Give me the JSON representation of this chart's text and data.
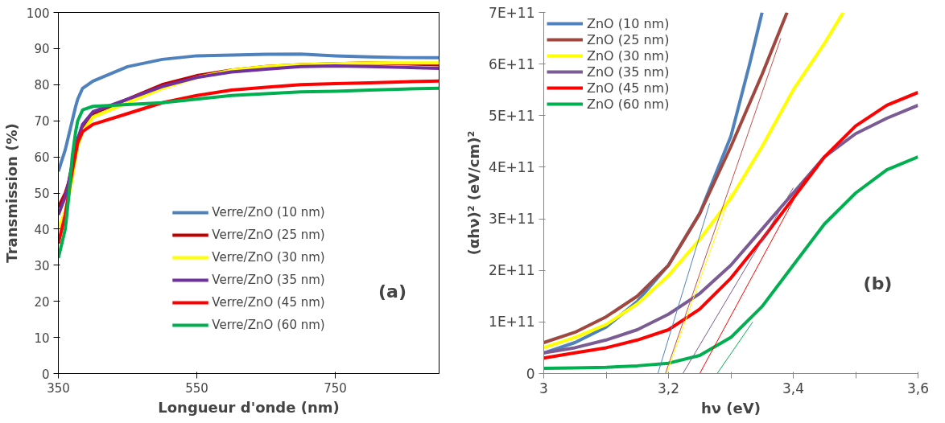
{
  "chart_data": [
    {
      "type": "line",
      "xlabel": "Longueur d'onde (nm)",
      "ylabel": "Transmission (%)",
      "x": [
        350,
        360,
        365,
        370,
        375,
        378,
        385,
        400,
        450,
        500,
        550,
        600,
        650,
        700,
        750,
        800,
        850,
        900
      ],
      "xlim": [
        350,
        900
      ],
      "xticks": [
        350,
        550,
        750
      ],
      "ylim": [
        0,
        100
      ],
      "yticks": [
        0,
        10,
        20,
        30,
        40,
        50,
        60,
        70,
        80,
        90,
        100
      ],
      "grid": false,
      "legend": "bottom",
      "annotations": [
        "(a)"
      ],
      "series": [
        {
          "name": "Verre/ZnO (10 nm)",
          "color": "#4f81bd",
          "values": [
            56,
            62,
            66,
            70,
            74,
            76,
            79,
            81,
            85,
            87,
            88,
            88.2,
            88.4,
            88.5,
            88,
            87.7,
            87.5,
            87.5
          ]
        },
        {
          "name": "Verre/ZnO (25 nm)",
          "color": "#c00000",
          "values": [
            46,
            50,
            53,
            58,
            62,
            65,
            68,
            72,
            76,
            80,
            82.5,
            84,
            85,
            85.5,
            85.8,
            86,
            85.8,
            85.5
          ]
        },
        {
          "name": "Verre/ZnO (30 nm)",
          "color": "#ffff00",
          "values": [
            40,
            45,
            49,
            54,
            60,
            63,
            67,
            71,
            75,
            79,
            82,
            84,
            85,
            85.5,
            85.8,
            86,
            86,
            86
          ]
        },
        {
          "name": "Verre/ZnO (35 nm)",
          "color": "#7030a0",
          "values": [
            44,
            49,
            53,
            58,
            62,
            65,
            69,
            72.5,
            76,
            79.5,
            82,
            83.5,
            84.3,
            85,
            85.2,
            85,
            84.8,
            84.5
          ]
        },
        {
          "name": "Verre/ZnO (45 nm)",
          "color": "#ff0000",
          "values": [
            36,
            44,
            50,
            56,
            61,
            64,
            67,
            69,
            72,
            75,
            77,
            78.5,
            79.3,
            80,
            80.3,
            80.5,
            80.8,
            81
          ]
        },
        {
          "name": "Verre/ZnO (60 nm)",
          "color": "#00b050",
          "values": [
            32,
            40,
            49,
            60,
            67,
            70,
            73,
            74,
            74.5,
            75,
            76,
            77,
            77.5,
            78,
            78.2,
            78.5,
            78.8,
            79
          ]
        }
      ]
    },
    {
      "type": "line",
      "xlabel": "hν (eV)",
      "ylabel": "(αhν)² (eV/cm)²",
      "x": [
        3.0,
        3.05,
        3.1,
        3.15,
        3.2,
        3.25,
        3.3,
        3.35,
        3.4,
        3.45,
        3.5,
        3.55,
        3.6
      ],
      "xlim": [
        3.0,
        3.6
      ],
      "xticks": [
        3,
        {
          "value": 3.1,
          "label": null
        },
        {
          "value": 3.2,
          "label": "3,2"
        },
        {
          "value": 3.3,
          "label": null
        },
        {
          "value": 3.4,
          "label": "3,4"
        },
        {
          "value": 3.5,
          "label": null
        },
        {
          "value": 3.6,
          "label": "3,6"
        }
      ],
      "ylim": [
        0,
        700000000000.0
      ],
      "yticks": [
        0,
        {
          "value": 100000000000.0,
          "label": "1E+11"
        },
        {
          "value": 200000000000.0,
          "label": "2E+11"
        },
        {
          "value": 300000000000.0,
          "label": "3E+11"
        },
        {
          "value": 400000000000.0,
          "label": "4E+11"
        },
        {
          "value": 500000000000.0,
          "label": "5E+11"
        },
        {
          "value": 600000000000.0,
          "label": "6E+11"
        },
        {
          "value": 700000000000.0,
          "label": "7E+11"
        }
      ],
      "grid": false,
      "legend": "top left",
      "annotations": [
        "(b)"
      ],
      "series": [
        {
          "name": "ZnO (10 nm)",
          "color": "#4f81bd",
          "x": [
            3.0,
            3.05,
            3.1,
            3.15,
            3.2,
            3.25,
            3.3,
            3.33,
            3.35
          ],
          "values": [
            40000000000.0,
            60000000000.0,
            90000000000.0,
            140000000000.0,
            210000000000.0,
            310000000000.0,
            460000000000.0,
            600000000000.0,
            700000000000.0
          ]
        },
        {
          "name": "ZnO (25 nm)",
          "color": "#a0473f",
          "x": [
            3.0,
            3.05,
            3.1,
            3.15,
            3.2,
            3.25,
            3.3,
            3.35,
            3.39
          ],
          "values": [
            60000000000.0,
            80000000000.0,
            110000000000.0,
            150000000000.0,
            210000000000.0,
            310000000000.0,
            440000000000.0,
            580000000000.0,
            700000000000.0
          ]
        },
        {
          "name": "ZnO (30 nm)",
          "color": "#ffff00",
          "x": [
            3.0,
            3.05,
            3.1,
            3.15,
            3.2,
            3.25,
            3.3,
            3.35,
            3.4,
            3.45,
            3.48
          ],
          "values": [
            50000000000.0,
            70000000000.0,
            95000000000.0,
            135000000000.0,
            190000000000.0,
            260000000000.0,
            340000000000.0,
            440000000000.0,
            550000000000.0,
            640000000000.0,
            700000000000.0
          ]
        },
        {
          "name": "ZnO (35 nm)",
          "color": "#7b5b94",
          "values": [
            40000000000.0,
            50000000000.0,
            65000000000.0,
            85000000000.0,
            115000000000.0,
            155000000000.0,
            210000000000.0,
            280000000000.0,
            350000000000.0,
            420000000000.0,
            465000000000.0,
            495000000000.0,
            520000000000.0
          ]
        },
        {
          "name": "ZnO (45 nm)",
          "color": "#ff0000",
          "values": [
            30000000000.0,
            40000000000.0,
            50000000000.0,
            65000000000.0,
            85000000000.0,
            125000000000.0,
            185000000000.0,
            260000000000.0,
            340000000000.0,
            420000000000.0,
            480000000000.0,
            520000000000.0,
            545000000000.0
          ]
        },
        {
          "name": "ZnO (60 nm)",
          "color": "#00b050",
          "values": [
            10000000000.0,
            11000000000.0,
            12000000000.0,
            15000000000.0,
            20000000000.0,
            35000000000.0,
            70000000000.0,
            130000000000.0,
            210000000000.0,
            290000000000.0,
            350000000000.0,
            395000000000.0,
            420000000000.0
          ]
        },
        {
          "color": "#4f81bd",
          "x": [
            3.183,
            3.266
          ],
          "values": [
            0,
            330000000000.0
          ]
        },
        {
          "color": "#c0504d",
          "x": [
            3.195,
            3.38
          ],
          "values": [
            0,
            650000000000.0
          ]
        },
        {
          "color": "#ffff00",
          "x": [
            3.197,
            3.3
          ],
          "values": [
            0,
            350000000000.0
          ]
        },
        {
          "color": "#7b5b94",
          "x": [
            3.223,
            3.4
          ],
          "values": [
            0,
            360000000000.0
          ]
        },
        {
          "color": "#ff0000",
          "x": [
            3.25,
            3.42
          ],
          "values": [
            0,
            380000000000.0
          ]
        },
        {
          "color": "#00b050",
          "x": [
            3.278,
            3.335
          ],
          "values": [
            0,
            100000000000.0
          ]
        }
      ]
    }
  ]
}
